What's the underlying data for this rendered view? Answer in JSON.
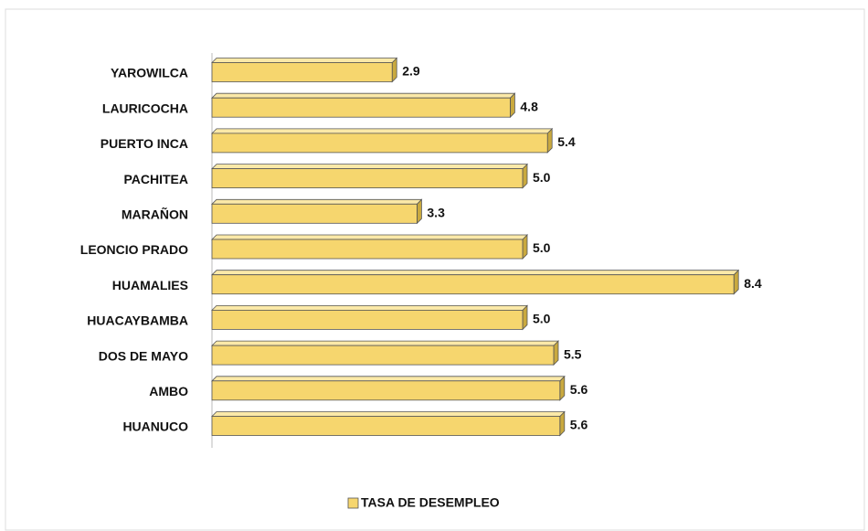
{
  "chart_data": {
    "type": "bar",
    "orientation": "horizontal",
    "categories": [
      "YAROWILCA",
      "LAURICOCHA",
      "PUERTO INCA",
      "PACHITEA",
      "MARAÑON",
      "LEONCIO PRADO",
      "HUAMALIES",
      "HUACAYBAMBA",
      "DOS DE MAYO",
      "AMBO",
      "HUANUCO"
    ],
    "series": [
      {
        "name": "TASA DE DESEMPLEO",
        "color": "#f6d66e",
        "values": [
          2.9,
          4.8,
          5.4,
          5.0,
          3.3,
          5.0,
          8.4,
          5.0,
          5.5,
          5.6,
          5.6
        ],
        "value_labels": [
          "2.9",
          "4.8",
          "5.4",
          "5.0",
          "3.3",
          "5.0",
          "8.4",
          "5.0",
          "5.5",
          "5.6",
          "5.6"
        ]
      }
    ],
    "legend": "bottom"
  }
}
